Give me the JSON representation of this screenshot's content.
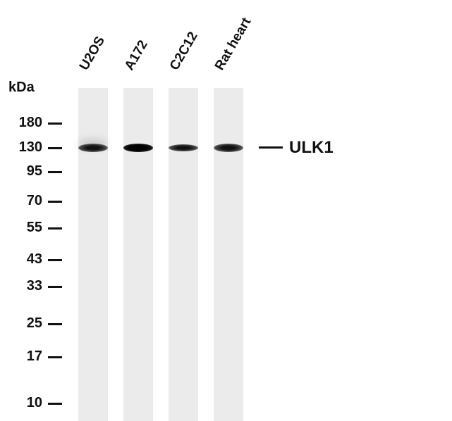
{
  "unit_label": "kDa",
  "lanes": [
    {
      "label": "U2OS",
      "band_intensity": 0.85
    },
    {
      "label": "A172",
      "band_intensity": 1.0
    },
    {
      "label": "C2C12",
      "band_intensity": 0.85
    },
    {
      "label": "Rat heart",
      "band_intensity": 0.85
    }
  ],
  "markers": [
    "180",
    "130",
    "95",
    "70",
    "55",
    "43",
    "33",
    "25",
    "17",
    "10"
  ],
  "target": "ULK1"
}
